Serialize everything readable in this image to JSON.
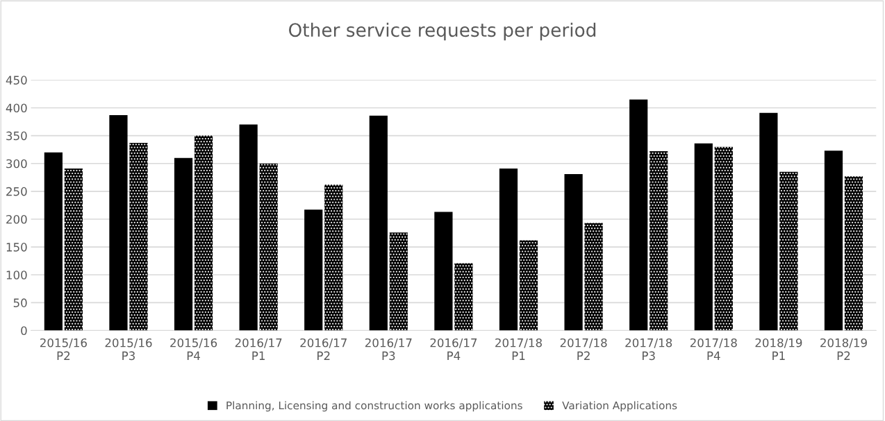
{
  "chart_data": {
    "type": "bar",
    "title": "Other service requests per period",
    "categories": [
      "2015/16\nP2",
      "2015/16\nP3",
      "2015/16\nP4",
      "2016/17\nP1",
      "2016/17\nP2",
      "2016/17\nP3",
      "2016/17\nP4",
      "2017/18\nP1",
      "2017/18\nP2",
      "2017/18\nP3",
      "2017/18\nP4",
      "2018/19\nP1",
      "2018/19\nP2"
    ],
    "series": [
      {
        "name": "Planning, Licensing and construction works applications",
        "color": "#000000",
        "values": [
          320,
          387,
          310,
          370,
          217,
          386,
          213,
          291,
          281,
          415,
          336,
          391,
          323
        ]
      },
      {
        "name": "Variation Applications",
        "color": "#000000",
        "values": [
          291,
          337,
          350,
          300,
          262,
          176,
          121,
          162,
          193,
          322,
          330,
          285,
          277
        ]
      }
    ],
    "ylim": [
      0,
      450
    ],
    "yticks": [
      0,
      50,
      100,
      150,
      200,
      250,
      300,
      350,
      400,
      450
    ],
    "grid": "y",
    "legend": "bottom"
  }
}
